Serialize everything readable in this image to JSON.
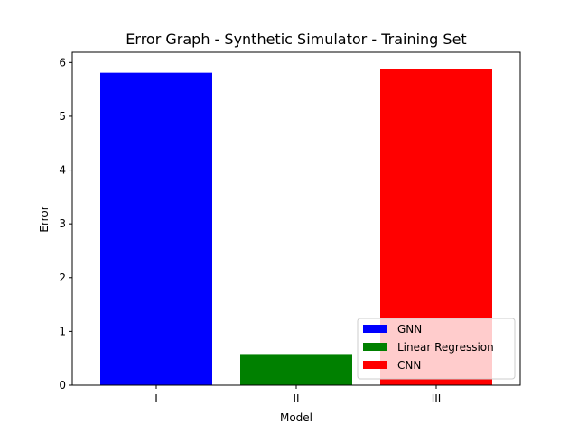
{
  "chart_data": {
    "type": "bar",
    "title": "Error Graph - Synthetic Simulator - Training Set",
    "xlabel": "Model",
    "ylabel": "Error",
    "categories": [
      "I",
      "II",
      "III"
    ],
    "ylim": [
      0,
      6.19
    ],
    "yticks": [
      0,
      1,
      2,
      3,
      4,
      5,
      6
    ],
    "grid": false,
    "legend_position": "lower-right",
    "series": [
      {
        "name": "GNN",
        "category": "I",
        "value": 5.81,
        "color": "#0000ff"
      },
      {
        "name": "Linear Regression",
        "category": "II",
        "value": 0.58,
        "color": "#008000"
      },
      {
        "name": "CNN",
        "category": "III",
        "value": 5.88,
        "color": "#ff0000"
      }
    ]
  }
}
